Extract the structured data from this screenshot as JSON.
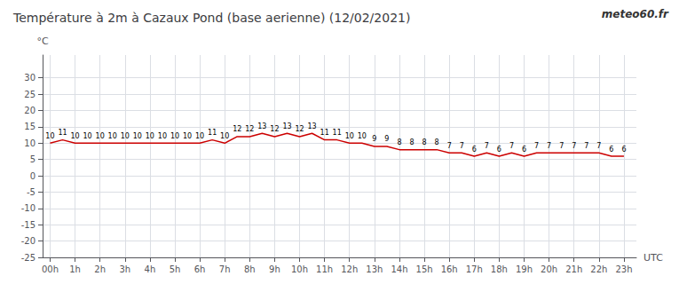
{
  "chart_data": {
    "type": "line",
    "title": "Température à 2m à Cazaux Pond (base aerienne) (12/02/2021)",
    "xlabel": "UTC",
    "ylabel": "°C",
    "annotations": [
      "meteo60.fr"
    ],
    "x": [
      0,
      0.5,
      1,
      1.5,
      2,
      2.5,
      3,
      3.5,
      4,
      4.5,
      5,
      5.5,
      6,
      6.5,
      7,
      7.5,
      8,
      8.5,
      9,
      9.5,
      10,
      10.5,
      11,
      11.5,
      12,
      12.5,
      13,
      13.5,
      14,
      14.5,
      15,
      15.5,
      16,
      16.5,
      17,
      17.5,
      18,
      18.5,
      19,
      19.5,
      20,
      20.5,
      21,
      21.5,
      22,
      22.5,
      23
    ],
    "values": [
      10,
      11,
      10,
      10,
      10,
      10,
      10,
      10,
      10,
      10,
      10,
      10,
      10,
      11,
      10,
      12,
      12,
      13,
      12,
      13,
      12,
      13,
      11,
      11,
      10,
      10,
      9,
      9,
      8,
      8,
      8,
      8,
      7,
      7,
      6,
      7,
      6,
      7,
      6,
      7,
      7,
      7,
      7,
      7,
      7,
      6,
      6
    ],
    "color": "#cc0000",
    "xlim": [
      -0.3,
      23.5
    ],
    "xticks": [
      {
        "value": 0,
        "label": "00h"
      },
      {
        "value": 1,
        "label": "1h"
      },
      {
        "value": 2,
        "label": "2h"
      },
      {
        "value": 3,
        "label": "3h"
      },
      {
        "value": 4,
        "label": "4h"
      },
      {
        "value": 5,
        "label": "5h"
      },
      {
        "value": 6,
        "label": "6h"
      },
      {
        "value": 7,
        "label": "7h"
      },
      {
        "value": 8,
        "label": "8h"
      },
      {
        "value": 9,
        "label": "9h"
      },
      {
        "value": 10,
        "label": "10h"
      },
      {
        "value": 11,
        "label": "11h"
      },
      {
        "value": 12,
        "label": "12h"
      },
      {
        "value": 13,
        "label": "13h"
      },
      {
        "value": 14,
        "label": "14h"
      },
      {
        "value": 15,
        "label": "15h"
      },
      {
        "value": 16,
        "label": "16h"
      },
      {
        "value": 17,
        "label": "17h"
      },
      {
        "value": 18,
        "label": "18h"
      },
      {
        "value": 19,
        "label": "19h"
      },
      {
        "value": 20,
        "label": "20h"
      },
      {
        "value": 21,
        "label": "21h"
      },
      {
        "value": 22,
        "label": "22h"
      },
      {
        "value": 23,
        "label": "23h"
      }
    ],
    "ylim": [
      -25,
      37
    ],
    "yticks": [
      -25,
      -20,
      -15,
      -10,
      -5,
      0,
      5,
      10,
      15,
      20,
      25,
      30
    ],
    "grid": true,
    "data_labels": true
  }
}
